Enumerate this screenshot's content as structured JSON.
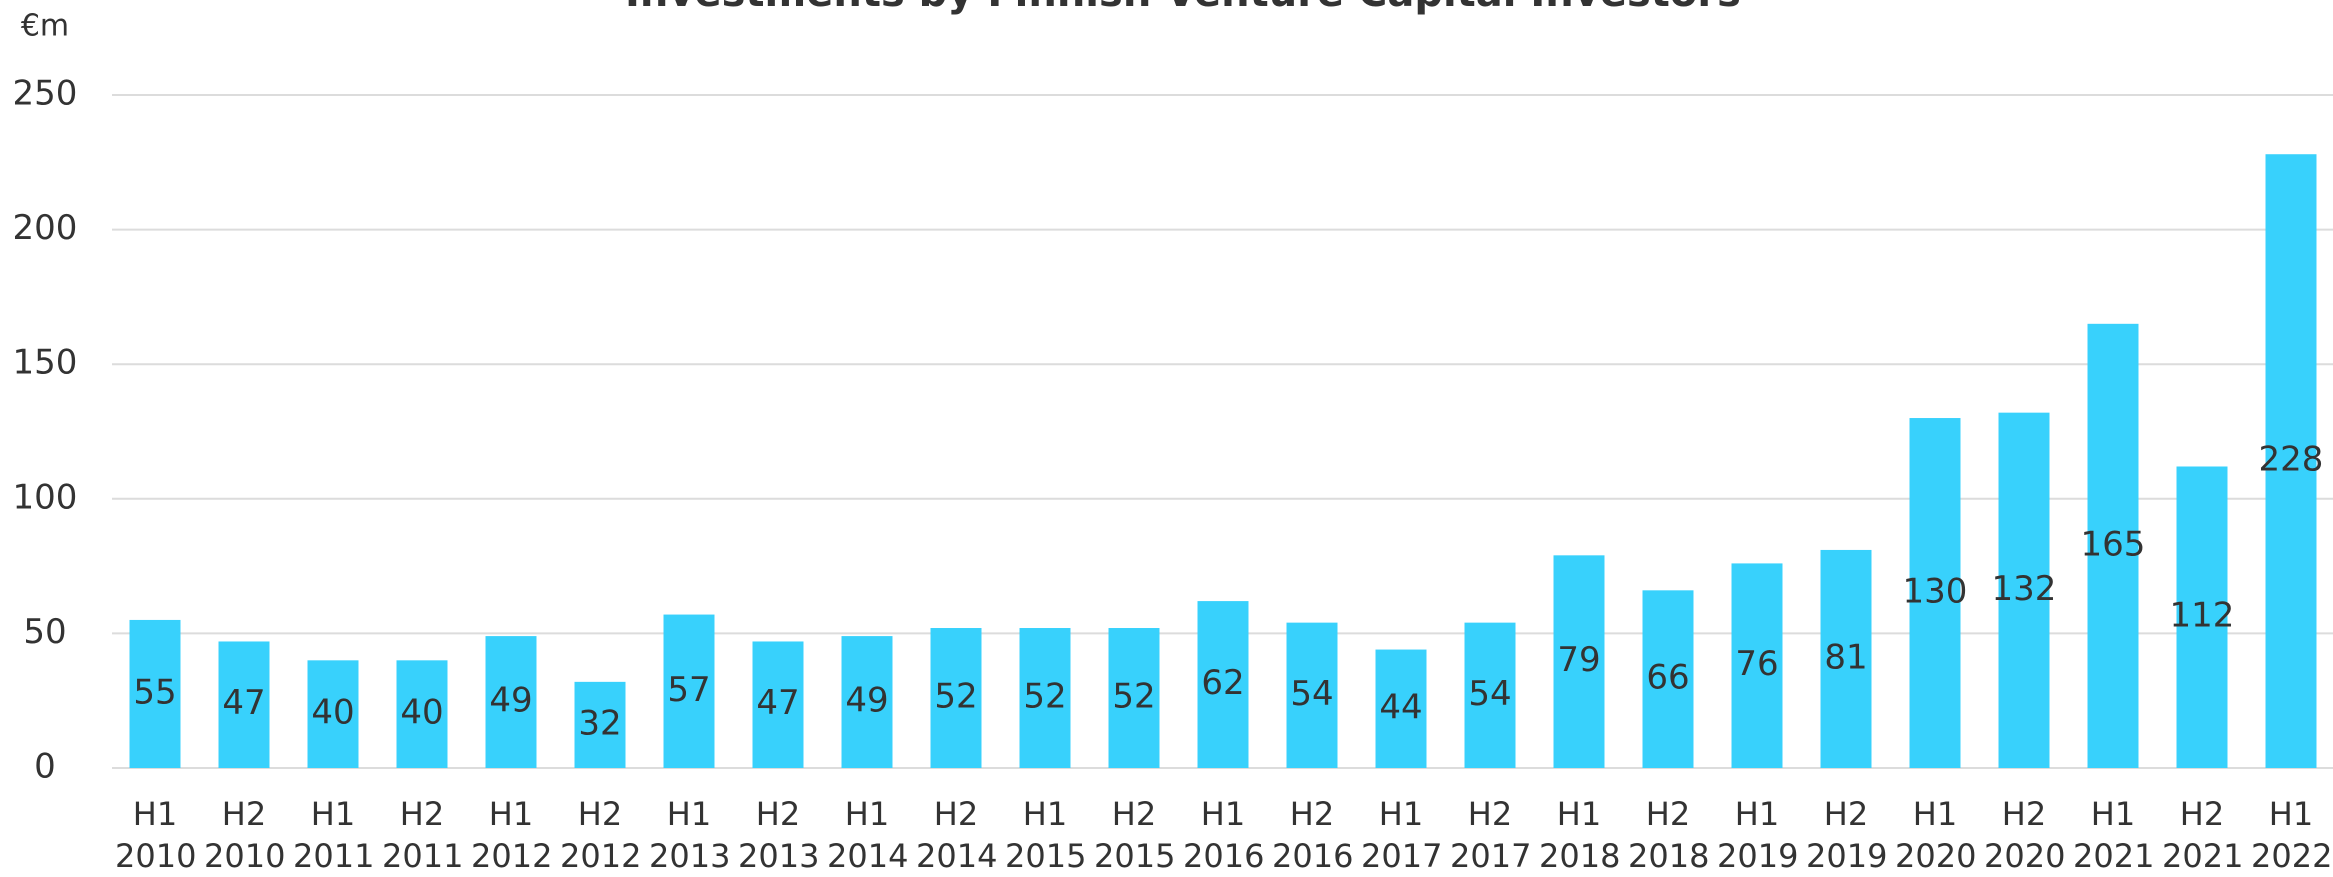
{
  "chart_data": {
    "type": "bar",
    "title": "Investments by Finnish Venture Capital Investors",
    "y_label": "€m",
    "categories": [
      "H1 2010",
      "H2 2010",
      "H1 2011",
      "H2 2011",
      "H1 2012",
      "H2 2012",
      "H1 2013",
      "H2 2013",
      "H1 2014",
      "H2 2014",
      "H1 2015",
      "H2 2015",
      "H1 2016",
      "H2 2016",
      "H1 2017",
      "H2 2017",
      "H1 2018",
      "H2 2018",
      "H1 2019",
      "H2 2019",
      "H1 2020",
      "H2 2020",
      "H1 2021",
      "H2 2021",
      "H1 2022"
    ],
    "values": [
      55,
      47,
      40,
      40,
      49,
      32,
      57,
      47,
      49,
      52,
      52,
      52,
      62,
      54,
      44,
      54,
      79,
      66,
      76,
      81,
      130,
      132,
      165,
      112,
      228
    ],
    "color": "#38d1fc",
    "ylim": [
      0,
      250
    ],
    "yticks": [
      0,
      50,
      100,
      150,
      200,
      250
    ],
    "grid": true
  }
}
